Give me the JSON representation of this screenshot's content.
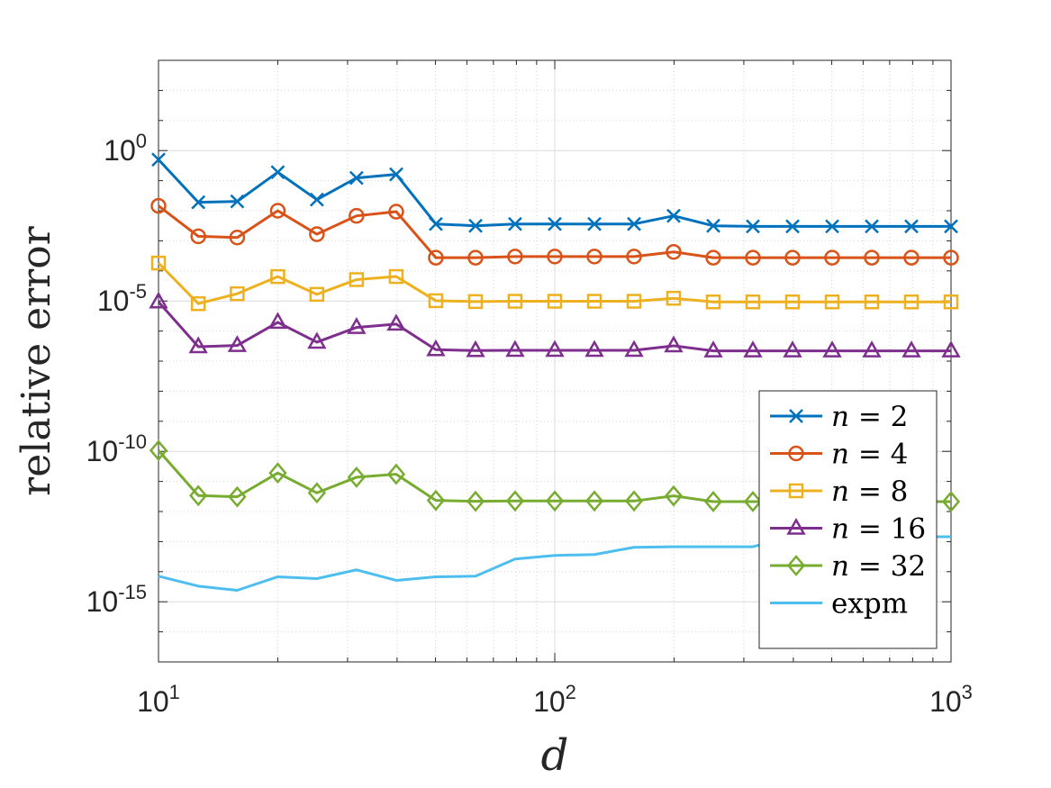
{
  "chart_data": {
    "type": "line",
    "xlabel": "d",
    "ylabel": "relative error",
    "xscale": "log",
    "yscale": "log",
    "xlim": [
      10,
      1000
    ],
    "ylim": [
      1e-17,
      1000.0
    ],
    "grid": true,
    "legend_position": "bottom-right",
    "x_ticks": [
      {
        "value": 10,
        "base": "10",
        "exp": "1"
      },
      {
        "value": 100,
        "base": "10",
        "exp": "2"
      },
      {
        "value": 1000,
        "base": "10",
        "exp": "3"
      }
    ],
    "y_ticks": [
      {
        "value": 1e-15,
        "base": "10",
        "exp": "-15"
      },
      {
        "value": 1e-10,
        "base": "10",
        "exp": "-10"
      },
      {
        "value": 1e-05,
        "base": "10",
        "exp": "-5"
      },
      {
        "value": 1,
        "base": "10",
        "exp": "0"
      }
    ],
    "x": [
      10,
      12.6,
      15.8,
      20,
      25.1,
      31.6,
      39.8,
      50.1,
      63.1,
      79.4,
      100,
      125.9,
      158.5,
      199.5,
      251.2,
      316.2,
      398.1,
      501.2,
      631,
      794.3,
      1000
    ],
    "series": [
      {
        "name": "n = 2",
        "label_var": "n",
        "label_val": "2",
        "color": "#0072BD",
        "marker": "x",
        "values": [
          0.5,
          0.0191,
          0.0204,
          0.191,
          0.0234,
          0.123,
          0.162,
          0.00363,
          0.00316,
          0.00363,
          0.00363,
          0.00363,
          0.00363,
          0.00676,
          0.00316,
          0.00302,
          0.00302,
          0.00302,
          0.00302,
          0.00302,
          0.00302
        ]
      },
      {
        "name": "n = 4",
        "label_var": "n",
        "label_val": "4",
        "color": "#D95319",
        "marker": "o",
        "values": [
          0.0145,
          0.00141,
          0.00129,
          0.01,
          0.00166,
          0.00676,
          0.00933,
          0.000275,
          0.000275,
          0.0003,
          0.0003,
          0.0003,
          0.0003,
          0.000427,
          0.000275,
          0.000275,
          0.000275,
          0.000275,
          0.000275,
          0.000275,
          0.000275
        ]
      },
      {
        "name": "n = 8",
        "label_var": "n",
        "label_val": "8",
        "color": "#EDB120",
        "marker": "s",
        "values": [
          0.000182,
          8.13e-06,
          1.74e-05,
          6.46e-05,
          1.66e-05,
          5.13e-05,
          6.5e-05,
          1.02e-05,
          9.55e-06,
          9.77e-06,
          9.77e-06,
          9.77e-06,
          9.77e-06,
          1.23e-05,
          9.3e-06,
          9.3e-06,
          9.3e-06,
          9.3e-06,
          9.3e-06,
          9.3e-06,
          9.3e-06
        ]
      },
      {
        "name": "n = 16",
        "label_var": "n",
        "label_val": "16",
        "color": "#7E2F8E",
        "marker": "^",
        "values": [
          9.33e-06,
          3.02e-07,
          3.31e-07,
          1.95e-06,
          4.27e-07,
          1.32e-06,
          1.7e-06,
          2.4e-07,
          2.24e-07,
          2.29e-07,
          2.29e-07,
          2.29e-07,
          2.29e-07,
          3.24e-07,
          2.19e-07,
          2.19e-07,
          2.19e-07,
          2.19e-07,
          2.19e-07,
          2.19e-07,
          2.19e-07
        ]
      },
      {
        "name": "n = 32",
        "label_var": "n",
        "label_val": "32",
        "color": "#77AC30",
        "marker": "d",
        "values": [
          1.07e-10,
          3.39e-12,
          3.09e-12,
          1.91e-11,
          4.17e-12,
          1.38e-11,
          1.74e-11,
          2.34e-12,
          2.19e-12,
          2.24e-12,
          2.24e-12,
          2.24e-12,
          2.24e-12,
          3.31e-12,
          2.14e-12,
          2.14e-12,
          2.14e-12,
          2.14e-12,
          2.14e-12,
          2.14e-12,
          2.14e-12
        ]
      },
      {
        "name": "expm",
        "color": "#4DBEEE",
        "marker": "none",
        "values": [
          7.08e-15,
          3.31e-15,
          2.4e-15,
          6.76e-15,
          5.89e-15,
          1.15e-14,
          5.13e-15,
          6.76e-15,
          7.08e-15,
          2.63e-14,
          3.47e-14,
          3.72e-14,
          6.46e-14,
          6.76e-14,
          6.76e-14,
          6.76e-14,
          1.45e-13,
          1.45e-13,
          1.45e-13,
          1.45e-13,
          1.45e-13
        ]
      }
    ]
  }
}
